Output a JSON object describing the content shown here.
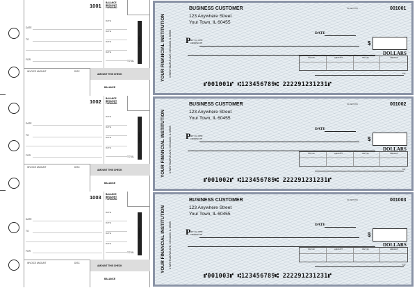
{
  "stub_labels": {
    "balance_brought_forward": "BALANCE BROUGHT FORWARD",
    "date": "DATE",
    "to": "TO",
    "for": "FOR",
    "deposits": "DEPOSITS",
    "total": "TOTAL",
    "invoice_amount": "INVOICE AMOUNT",
    "disc": "DISC",
    "amount_this_check": "AMOUNT THIS CHECK",
    "balance": "BALANCE"
  },
  "check_labels": {
    "customer_name": "BUSINESS CUSTOMER",
    "customer_street": "123 Anywhere Street",
    "customer_city": "Your Town, IL 60455",
    "bank_name": "YOUR FINANCIAL INSTITUTION",
    "bank_address": "3 WEST MAPLE AVE, CHICAGO, IL 55555",
    "fraction": "01-9987/054",
    "date": "DATE",
    "pay": "P",
    "pay_to": "AY TO THE ORDER OF",
    "dollar_sign": "$",
    "dollars": "DOLLARS",
    "inv_no": "INV NO",
    "amount": "AMOUNT",
    "mp": "MP"
  },
  "checks": [
    {
      "number": "1001",
      "check_number": "001001",
      "micr": "⑈001001⑈ ⑆123456789⑆ 222291231231⑈"
    },
    {
      "number": "1002",
      "check_number": "001002",
      "micr": "⑈001002⑈ ⑆123456789⑆ 222291231231⑈"
    },
    {
      "number": "1003",
      "check_number": "001003",
      "micr": "⑈001003⑈ ⑆123456789⑆ 222291231231⑈"
    }
  ],
  "colors": {
    "check_bg": "#e8eef2",
    "border": "#8a93a6"
  }
}
